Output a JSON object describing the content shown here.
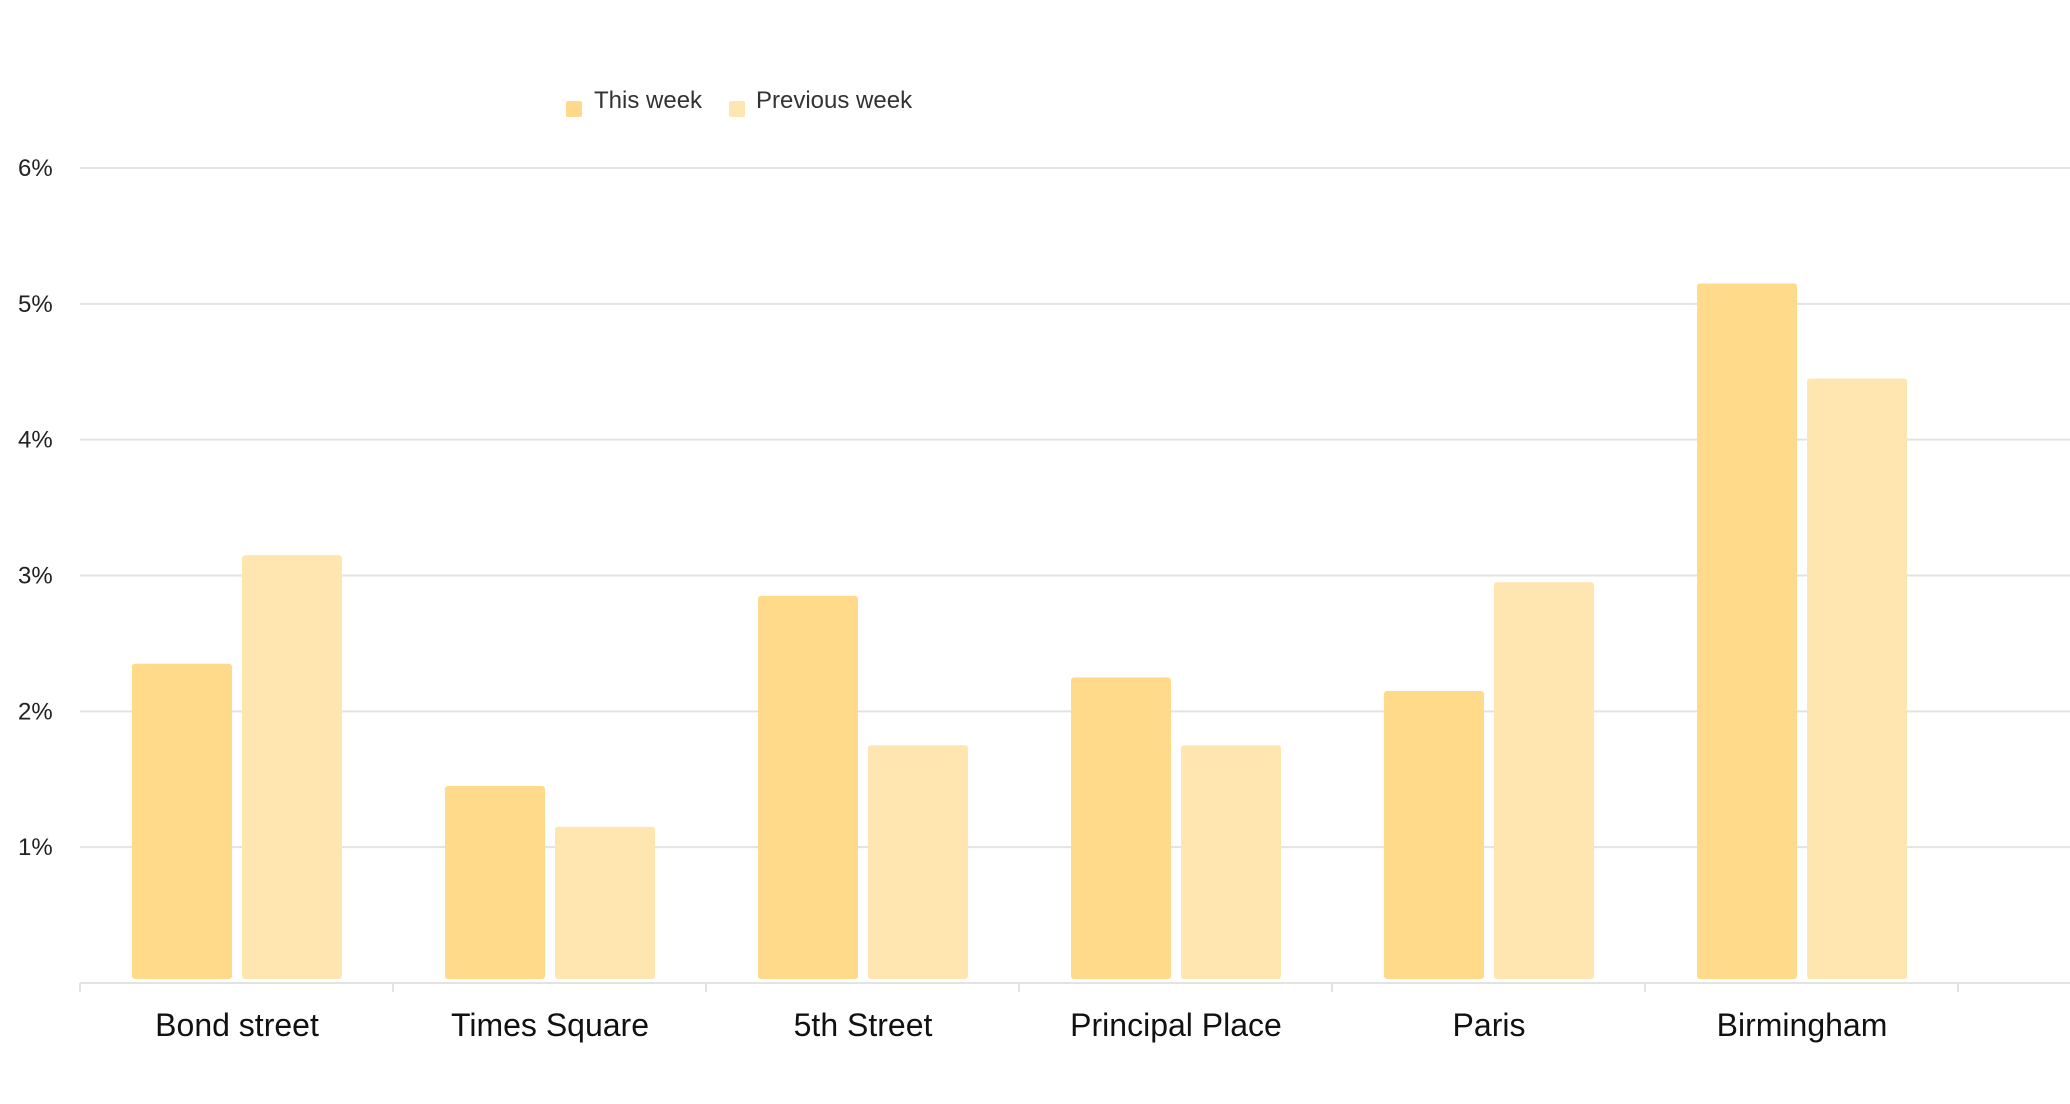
{
  "chart_data": {
    "type": "bar",
    "categories": [
      "Bond street",
      "Times Square",
      "5th Street",
      "Principal Place",
      "Paris",
      "Birmingham"
    ],
    "series": [
      {
        "name": "This week",
        "values": [
          2.35,
          1.45,
          2.85,
          2.25,
          2.15,
          5.15
        ],
        "color": "#FFDA8A"
      },
      {
        "name": "Previous week",
        "values": [
          3.15,
          1.15,
          1.75,
          1.75,
          2.95,
          4.45
        ],
        "color": "#FFE6B0"
      }
    ],
    "yticks": [
      "1%",
      "2%",
      "3%",
      "4%",
      "5%",
      "6%"
    ],
    "ylim": [
      0,
      6
    ],
    "grid": true,
    "legend_position": "top-left"
  }
}
